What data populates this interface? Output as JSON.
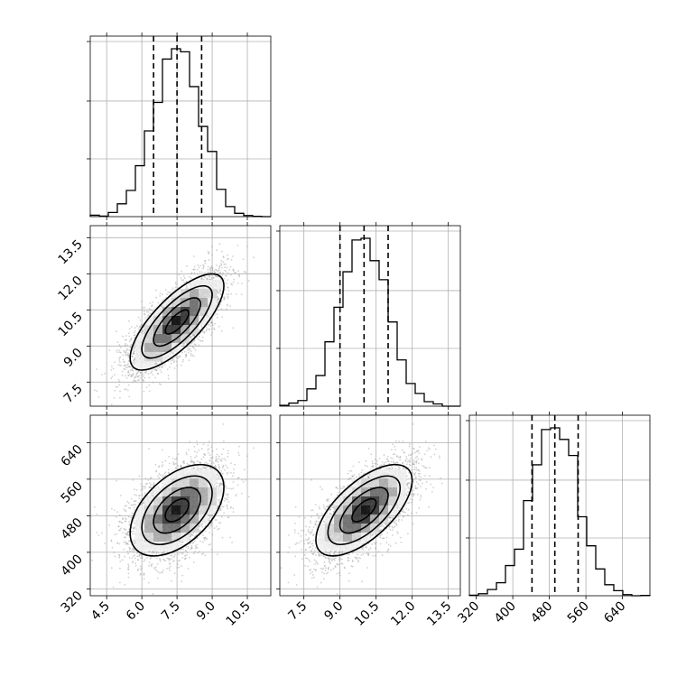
{
  "chart_data": {
    "type": "corner",
    "title": "",
    "params": [
      "",
      "",
      ""
    ],
    "ranges": [
      [
        3.8,
        11.5
      ],
      [
        6.5,
        14.0
      ],
      [
        305,
        700
      ]
    ],
    "ticks": [
      [
        "4.5",
        "6.0",
        "7.5",
        "9.0",
        "10.5"
      ],
      [
        "7.5",
        "9.0",
        "10.5",
        "12.0",
        "13.5"
      ],
      [
        "320",
        "400",
        "480",
        "560",
        "640"
      ]
    ],
    "tick_values": [
      [
        4.5,
        6.0,
        7.5,
        9.0,
        10.5
      ],
      [
        7.5,
        9.0,
        10.5,
        12.0,
        13.5
      ],
      [
        320,
        400,
        480,
        560,
        640
      ]
    ],
    "quantiles": [
      [
        6.5,
        7.5,
        8.55
      ],
      [
        9.0,
        10.0,
        11.0
      ],
      [
        442,
        492,
        543
      ]
    ],
    "means": [
      7.5,
      10.0,
      492
    ],
    "stds": [
      1.0,
      1.0,
      50
    ],
    "correlations": {
      "0-1": 0.75,
      "0-2": 0.5,
      "1-2": 0.65
    },
    "n_bins": 20,
    "grid": true,
    "series_color": "#000000",
    "point_color": "#9a9a9a"
  }
}
